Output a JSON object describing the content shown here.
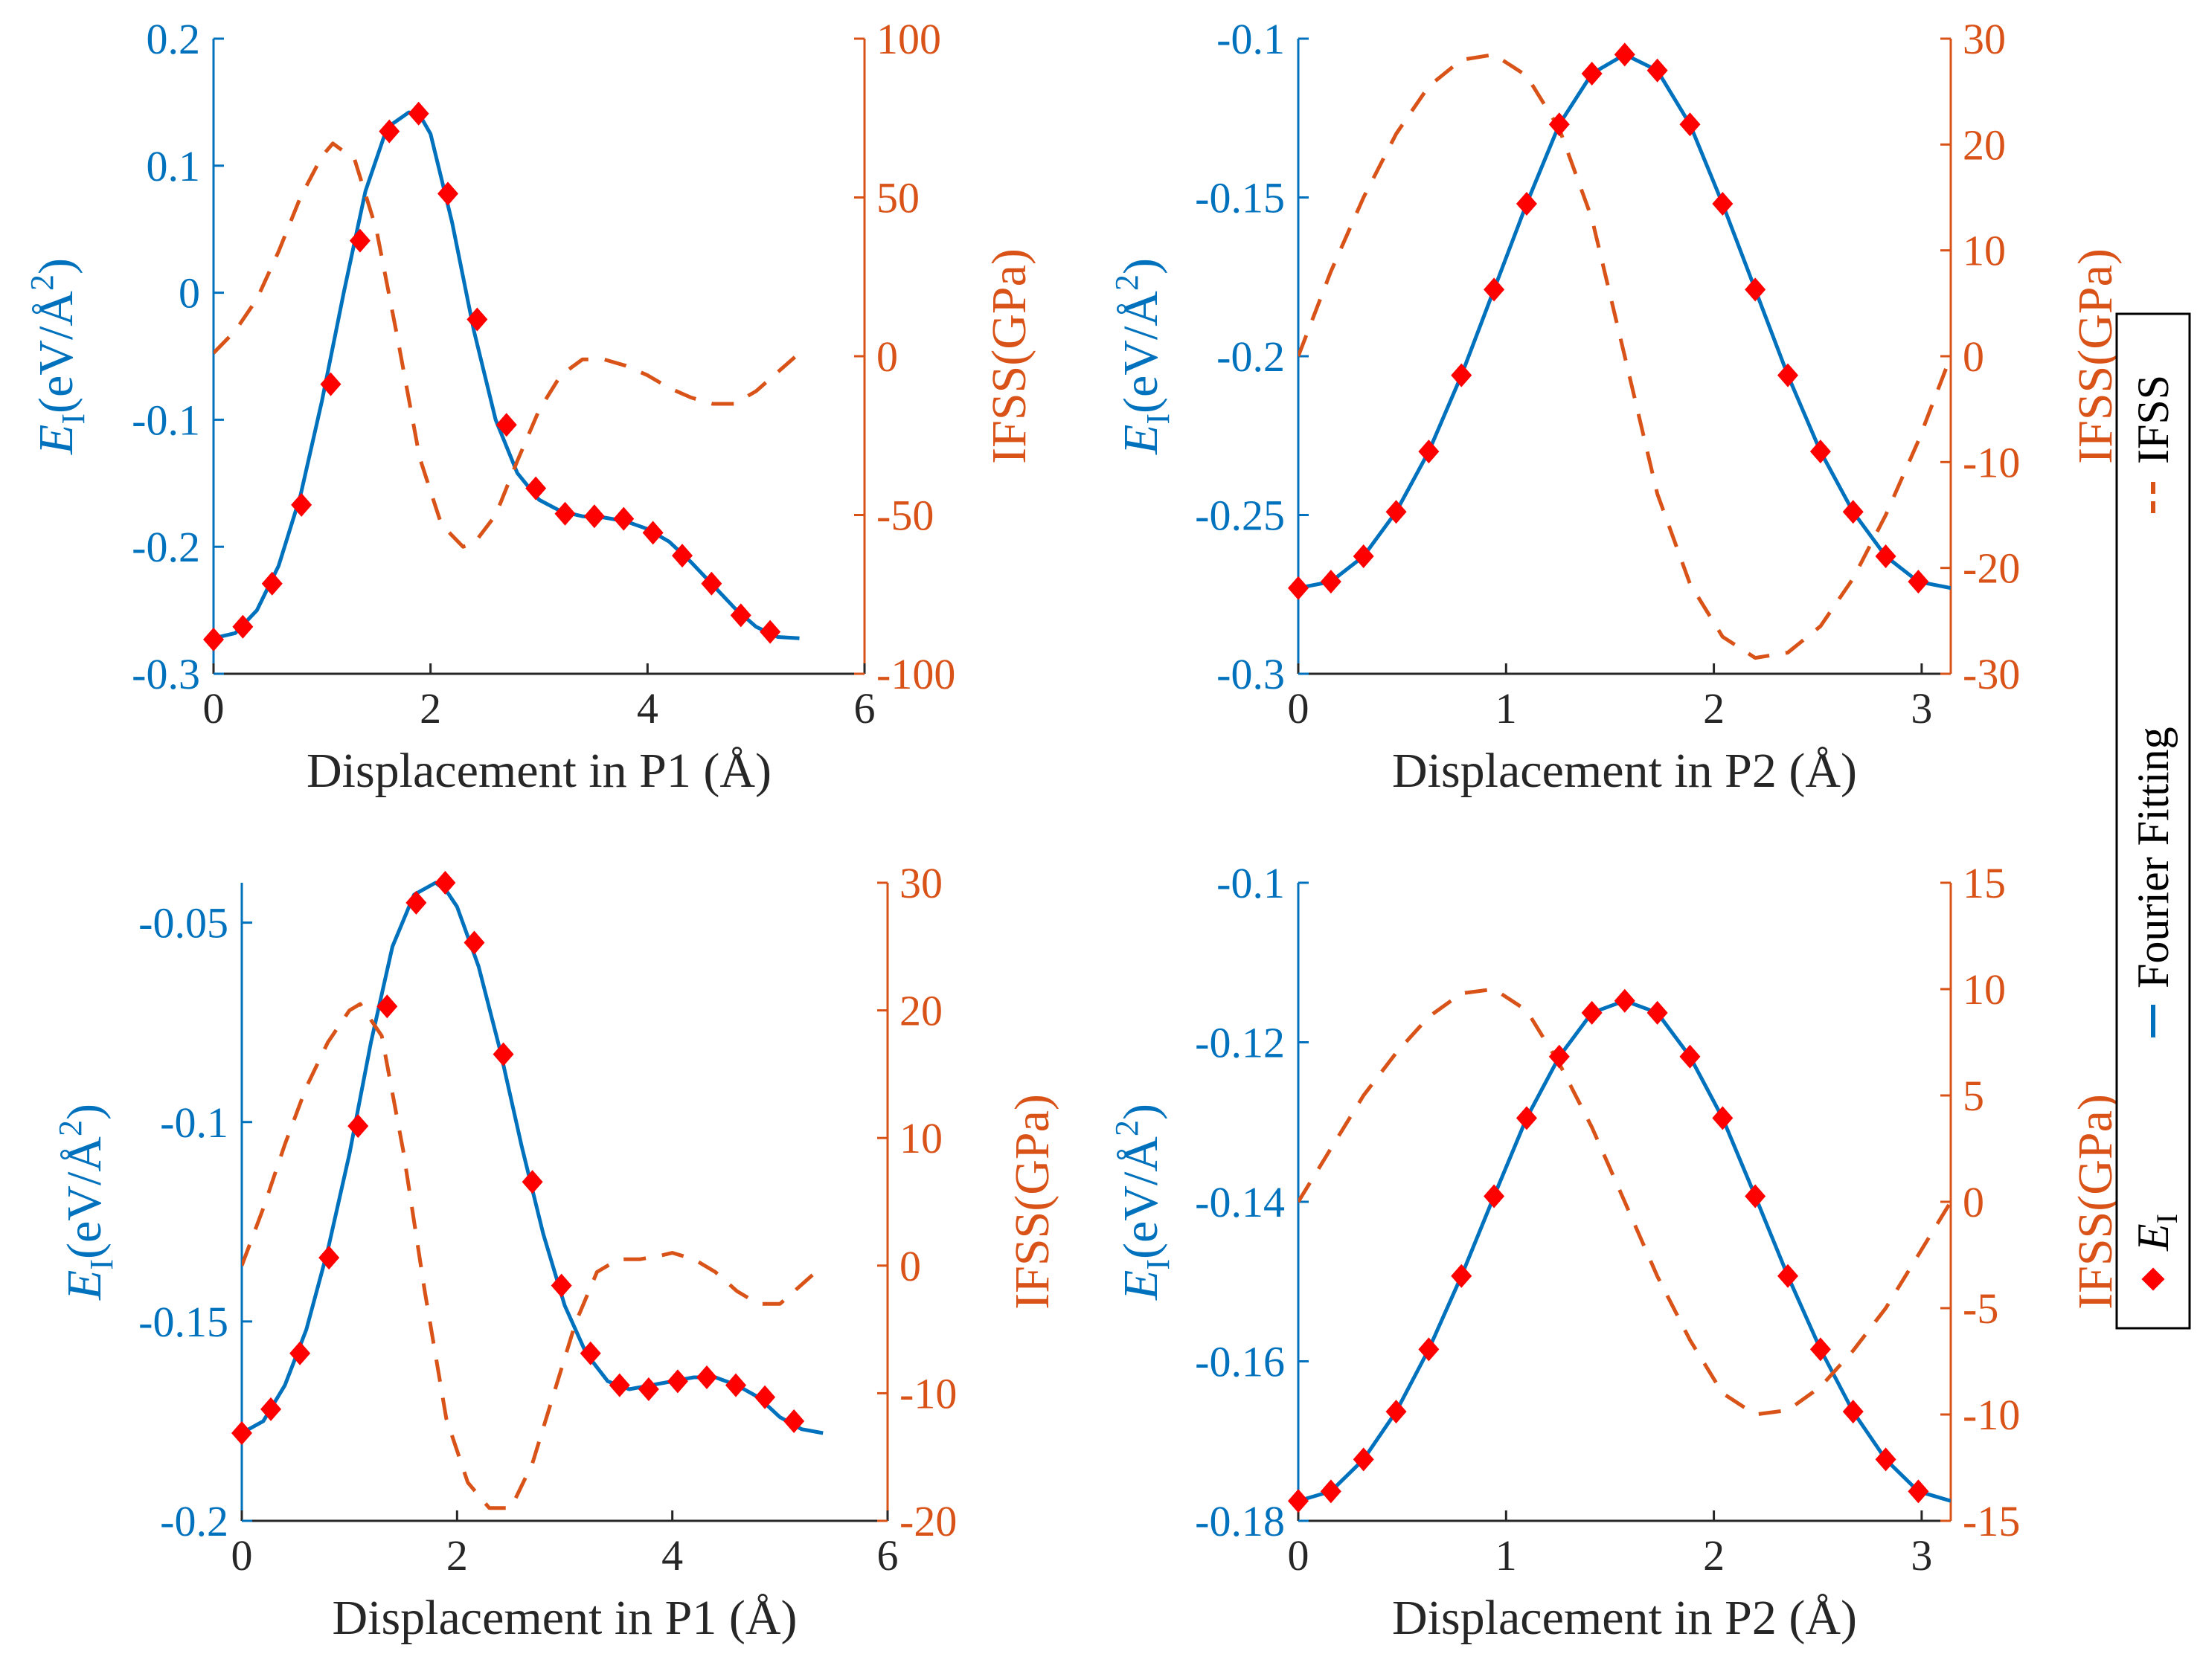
{
  "colors": {
    "energy": "#0072BD",
    "ifss": "#D95319",
    "marker": "#FF0000",
    "axis_x": "#262626"
  },
  "legend": {
    "items": [
      {
        "label": "E",
        "subscript": "I",
        "kind": "marker",
        "color": "#FF0000"
      },
      {
        "label": "Fourier Fitting",
        "kind": "line",
        "color": "#0072BD"
      },
      {
        "label": "IFSS",
        "kind": "dashed",
        "color": "#D95319"
      }
    ]
  },
  "chart_data": [
    {
      "type": "line",
      "panel": "top-left",
      "xlabel": "Displacement in P1 (Å)",
      "ylabel_left": {
        "main": "E",
        "sub": "I",
        "rest": "(eV/Å",
        "sup": "2",
        "close": ")"
      },
      "ylabel_right": "IFSS(GPa)",
      "xlim": [
        0,
        6
      ],
      "xticks": [
        0,
        2,
        4,
        6
      ],
      "xtick_labels": [
        "0",
        "2",
        "4",
        "6"
      ],
      "ylim_left": [
        -0.3,
        0.2
      ],
      "yticks_left": [
        0.2,
        0.1,
        0,
        -0.1,
        -0.2,
        -0.3
      ],
      "ytick_labels_left": [
        "0.2",
        "0.1",
        "0",
        "-0.1",
        "-0.2",
        "-0.3"
      ],
      "ylim_right": [
        -100,
        100
      ],
      "yticks_right": [
        100,
        50,
        0,
        -50,
        -100
      ],
      "ytick_labels_right": [
        "100",
        "50",
        "0",
        "-50",
        "-100"
      ],
      "series": [
        {
          "name": "E_I",
          "kind": "marker",
          "axis": "left",
          "x": [
            0,
            0.27,
            0.54,
            0.81,
            1.08,
            1.35,
            1.62,
            1.89,
            2.16,
            2.43,
            2.7,
            2.97,
            3.24,
            3.51,
            3.78,
            4.05,
            4.32,
            4.59,
            4.86,
            5.13
          ],
          "y": [
            -0.273,
            -0.263,
            -0.229,
            -0.167,
            -0.072,
            0.041,
            0.127,
            0.141,
            0.078,
            -0.021,
            -0.104,
            -0.154,
            -0.174,
            -0.176,
            -0.178,
            -0.189,
            -0.207,
            -0.229,
            -0.254,
            -0.267
          ]
        },
        {
          "name": "Fourier Fitting",
          "kind": "line",
          "axis": "left",
          "x": [
            0,
            0.2,
            0.4,
            0.6,
            0.8,
            1.0,
            1.2,
            1.4,
            1.6,
            1.8,
            1.9,
            2.0,
            2.2,
            2.4,
            2.6,
            2.8,
            3.0,
            3.2,
            3.4,
            3.6,
            3.8,
            4.0,
            4.2,
            4.4,
            4.6,
            4.8,
            5.0,
            5.2,
            5.4
          ],
          "y": [
            -0.272,
            -0.268,
            -0.25,
            -0.215,
            -0.16,
            -0.085,
            0.0,
            0.08,
            0.13,
            0.142,
            0.14,
            0.125,
            0.055,
            -0.03,
            -0.1,
            -0.142,
            -0.163,
            -0.172,
            -0.176,
            -0.177,
            -0.18,
            -0.186,
            -0.196,
            -0.212,
            -0.23,
            -0.248,
            -0.263,
            -0.271,
            -0.272
          ]
        },
        {
          "name": "IFSS",
          "kind": "dashed",
          "axis": "right",
          "x": [
            0,
            0.2,
            0.4,
            0.6,
            0.8,
            1.0,
            1.1,
            1.3,
            1.5,
            1.7,
            1.9,
            2.1,
            2.3,
            2.4,
            2.6,
            2.8,
            3.0,
            3.2,
            3.4,
            3.6,
            3.8,
            4.0,
            4.2,
            4.4,
            4.6,
            4.8,
            5.0,
            5.2,
            5.4
          ],
          "y": [
            1,
            8,
            18,
            33,
            50,
            63,
            67,
            62,
            40,
            5,
            -32,
            -53,
            -60,
            -59,
            -50,
            -33,
            -17,
            -6,
            -1,
            -1,
            -3,
            -6,
            -10,
            -13,
            -15,
            -15,
            -11,
            -5,
            1
          ]
        }
      ]
    },
    {
      "type": "line",
      "panel": "top-right",
      "xlabel": "Displacement in P2 (Å)",
      "ylabel_left": {
        "main": "E",
        "sub": "I",
        "rest": "(eV/Å",
        "sup": "2",
        "close": ")"
      },
      "ylabel_right": "IFSS(GPa)",
      "xlim": [
        0,
        3.14
      ],
      "xticks": [
        0,
        1,
        2,
        3
      ],
      "xtick_labels": [
        "0",
        "1",
        "2",
        "3"
      ],
      "ylim_left": [
        -0.3,
        -0.1
      ],
      "yticks_left": [
        -0.1,
        -0.15,
        -0.2,
        -0.25,
        -0.3
      ],
      "ytick_labels_left": [
        "-0.1",
        "-0.15",
        "-0.2",
        "-0.25",
        "-0.3"
      ],
      "ylim_right": [
        -30,
        30
      ],
      "yticks_right": [
        30,
        20,
        10,
        0,
        -10,
        -20,
        -30
      ],
      "ytick_labels_right": [
        "30",
        "20",
        "10",
        "0",
        "-10",
        "-20",
        "-30"
      ],
      "series": [
        {
          "name": "E_I",
          "kind": "marker",
          "axis": "left",
          "x": [
            0,
            0.157,
            0.314,
            0.471,
            0.628,
            0.785,
            0.942,
            1.099,
            1.256,
            1.413,
            1.571,
            1.728,
            1.885,
            2.042,
            2.199,
            2.356,
            2.513,
            2.67,
            2.827,
            2.984
          ],
          "y": [
            -0.273,
            -0.271,
            -0.263,
            -0.249,
            -0.23,
            -0.206,
            -0.179,
            -0.152,
            -0.127,
            -0.111,
            -0.105,
            -0.11,
            -0.127,
            -0.152,
            -0.179,
            -0.206,
            -0.23,
            -0.249,
            -0.263,
            -0.271
          ]
        },
        {
          "name": "Fourier Fitting",
          "kind": "line",
          "axis": "left",
          "x": [
            0,
            0.157,
            0.314,
            0.471,
            0.628,
            0.785,
            0.942,
            1.099,
            1.256,
            1.413,
            1.571,
            1.728,
            1.885,
            2.042,
            2.199,
            2.356,
            2.513,
            2.67,
            2.827,
            2.984,
            3.14
          ],
          "y": [
            -0.273,
            -0.271,
            -0.263,
            -0.249,
            -0.23,
            -0.206,
            -0.179,
            -0.152,
            -0.127,
            -0.111,
            -0.105,
            -0.11,
            -0.127,
            -0.152,
            -0.179,
            -0.206,
            -0.23,
            -0.249,
            -0.263,
            -0.271,
            -0.273
          ]
        },
        {
          "name": "IFSS",
          "kind": "dashed",
          "axis": "right",
          "x": [
            0,
            0.157,
            0.314,
            0.471,
            0.628,
            0.785,
            0.942,
            1.099,
            1.256,
            1.413,
            1.571,
            1.728,
            1.885,
            2.042,
            2.199,
            2.356,
            2.513,
            2.67,
            2.827,
            2.984,
            3.14
          ],
          "y": [
            0,
            8,
            15,
            21,
            25.5,
            28,
            28.5,
            26.5,
            21.5,
            13,
            0,
            -13,
            -21.5,
            -26.5,
            -28.5,
            -28,
            -25.5,
            -21,
            -15,
            -8,
            0
          ]
        }
      ]
    },
    {
      "type": "line",
      "panel": "bottom-left",
      "xlabel": "Displacement in P1 (Å)",
      "ylabel_left": {
        "main": "E",
        "sub": "I",
        "rest": "(eV/Å",
        "sup": "2",
        "close": ")"
      },
      "ylabel_right": "IFSS(GPa)",
      "xlim": [
        0,
        6
      ],
      "xticks": [
        0,
        2,
        4,
        6
      ],
      "xtick_labels": [
        "0",
        "2",
        "4",
        "6"
      ],
      "ylim_left": [
        -0.2,
        -0.04
      ],
      "yticks_left": [
        -0.05,
        -0.1,
        -0.15,
        -0.2
      ],
      "ytick_labels_left": [
        "-0.05",
        "-0.1",
        "-0.15",
        "-0.2"
      ],
      "ylim_right": [
        -20,
        30
      ],
      "yticks_right": [
        30,
        20,
        10,
        0,
        -10,
        -20
      ],
      "ytick_labels_right": [
        "30",
        "20",
        "10",
        "0",
        "-10",
        "-20"
      ],
      "series": [
        {
          "name": "E_I",
          "kind": "marker",
          "axis": "left",
          "x": [
            0,
            0.27,
            0.54,
            0.81,
            1.08,
            1.35,
            1.62,
            1.89,
            2.16,
            2.43,
            2.7,
            2.97,
            3.24,
            3.51,
            3.78,
            4.05,
            4.32,
            4.59,
            4.86,
            5.13
          ],
          "y": [
            -0.178,
            -0.172,
            -0.158,
            -0.134,
            -0.101,
            -0.071,
            -0.045,
            -0.04,
            -0.055,
            -0.083,
            -0.115,
            -0.141,
            -0.158,
            -0.166,
            -0.167,
            -0.165,
            -0.164,
            -0.166,
            -0.169,
            -0.175
          ]
        },
        {
          "name": "Fourier Fitting",
          "kind": "line",
          "axis": "left",
          "x": [
            0,
            0.2,
            0.4,
            0.6,
            0.8,
            1.0,
            1.2,
            1.4,
            1.6,
            1.8,
            1.9,
            2.0,
            2.2,
            2.4,
            2.6,
            2.8,
            3.0,
            3.2,
            3.4,
            3.6,
            3.8,
            4.0,
            4.2,
            4.4,
            4.6,
            4.8,
            5.0,
            5.2,
            5.4
          ],
          "y": [
            -0.178,
            -0.175,
            -0.166,
            -0.152,
            -0.132,
            -0.108,
            -0.08,
            -0.056,
            -0.043,
            -0.04,
            -0.042,
            -0.046,
            -0.061,
            -0.082,
            -0.106,
            -0.128,
            -0.146,
            -0.158,
            -0.165,
            -0.167,
            -0.166,
            -0.165,
            -0.164,
            -0.164,
            -0.166,
            -0.169,
            -0.174,
            -0.177,
            -0.178
          ]
        },
        {
          "name": "IFSS",
          "kind": "dashed",
          "axis": "right",
          "x": [
            0,
            0.2,
            0.4,
            0.6,
            0.8,
            1.0,
            1.1,
            1.3,
            1.5,
            1.7,
            1.9,
            2.1,
            2.3,
            2.5,
            2.7,
            2.9,
            3.1,
            3.3,
            3.5,
            3.7,
            3.9,
            4.0,
            4.2,
            4.4,
            4.6,
            4.8,
            5.0,
            5.2,
            5.4
          ],
          "y": [
            0,
            4.5,
            9.5,
            14,
            17.5,
            20,
            20.5,
            18,
            9,
            -2,
            -12,
            -17,
            -19,
            -19,
            -15.5,
            -10,
            -4.5,
            -0.5,
            0.5,
            0.5,
            0.8,
            1,
            0.5,
            -0.5,
            -2,
            -3,
            -3,
            -1.5,
            0
          ]
        }
      ]
    },
    {
      "type": "line",
      "panel": "bottom-right",
      "xlabel": "Displacement in P2 (Å)",
      "ylabel_left": {
        "main": "E",
        "sub": "I",
        "rest": "(eV/Å",
        "sup": "2",
        "close": ")"
      },
      "ylabel_right": "IFSS(GPa)",
      "xlim": [
        0,
        3.14
      ],
      "xticks": [
        0,
        1,
        2,
        3
      ],
      "xtick_labels": [
        "0",
        "1",
        "2",
        "3"
      ],
      "ylim_left": [
        -0.18,
        -0.1
      ],
      "yticks_left": [
        -0.1,
        -0.12,
        -0.14,
        -0.16,
        -0.18
      ],
      "ytick_labels_left": [
        "-0.1",
        "-0.12",
        "-0.14",
        "-0.16",
        "-0.18"
      ],
      "ylim_right": [
        -15,
        15
      ],
      "yticks_right": [
        15,
        10,
        5,
        0,
        -5,
        -10,
        -15
      ],
      "ytick_labels_right": [
        "15",
        "10",
        "5",
        "0",
        "-5",
        "-10",
        "-15"
      ],
      "series": [
        {
          "name": "E_I",
          "kind": "marker",
          "axis": "left",
          "x": [
            0,
            0.157,
            0.314,
            0.471,
            0.628,
            0.785,
            0.942,
            1.099,
            1.256,
            1.413,
            1.571,
            1.728,
            1.885,
            2.042,
            2.199,
            2.356,
            2.513,
            2.67,
            2.827,
            2.984
          ],
          "y": [
            -0.1775,
            -0.1763,
            -0.1723,
            -0.1663,
            -0.1585,
            -0.1493,
            -0.1393,
            -0.1295,
            -0.1218,
            -0.1163,
            -0.1148,
            -0.1163,
            -0.1218,
            -0.1295,
            -0.1393,
            -0.1493,
            -0.1585,
            -0.1663,
            -0.1723,
            -0.1763
          ]
        },
        {
          "name": "Fourier Fitting",
          "kind": "line",
          "axis": "left",
          "x": [
            0,
            0.157,
            0.314,
            0.471,
            0.628,
            0.785,
            0.942,
            1.099,
            1.256,
            1.413,
            1.571,
            1.728,
            1.885,
            2.042,
            2.199,
            2.356,
            2.513,
            2.67,
            2.827,
            2.984,
            3.14
          ],
          "y": [
            -0.1775,
            -0.1763,
            -0.1723,
            -0.1663,
            -0.1585,
            -0.1493,
            -0.1393,
            -0.1295,
            -0.1218,
            -0.1163,
            -0.1148,
            -0.1163,
            -0.1218,
            -0.1295,
            -0.1393,
            -0.1493,
            -0.1585,
            -0.1663,
            -0.1723,
            -0.1763,
            -0.1775
          ]
        },
        {
          "name": "IFSS",
          "kind": "dashed",
          "axis": "right",
          "x": [
            0,
            0.157,
            0.314,
            0.471,
            0.628,
            0.785,
            0.942,
            1.099,
            1.256,
            1.413,
            1.571,
            1.728,
            1.885,
            2.042,
            2.199,
            2.356,
            2.513,
            2.67,
            2.827,
            2.984,
            3.14
          ],
          "y": [
            0,
            2.5,
            5,
            7,
            8.7,
            9.8,
            10,
            9,
            6.5,
            3.5,
            0,
            -3.5,
            -6.5,
            -9,
            -10,
            -9.8,
            -8.7,
            -7,
            -5,
            -2.5,
            0
          ]
        }
      ]
    }
  ]
}
